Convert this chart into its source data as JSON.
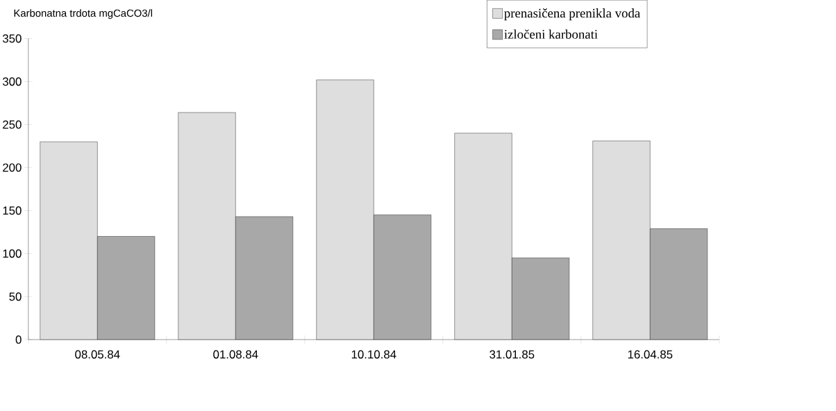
{
  "chart_data": {
    "type": "bar",
    "ylabel": "Karbonatna trdota  mgCaCO3/l",
    "categories": [
      "08.05.84",
      "01.08.84",
      "10.10.84",
      "31.01.85",
      "16.04.85"
    ],
    "series": [
      {
        "name": "prenasičena prenikla voda",
        "color": "#dedede",
        "values": [
          230,
          264,
          302,
          240,
          231
        ]
      },
      {
        "name": "izločeni karbonati",
        "color": "#a8a8a8",
        "values": [
          120,
          143,
          145,
          95,
          129
        ]
      }
    ],
    "ylim": [
      0,
      350
    ],
    "yticks": [
      0,
      50,
      100,
      150,
      200,
      250,
      300,
      350
    ],
    "grid": false,
    "legend": "top right"
  }
}
